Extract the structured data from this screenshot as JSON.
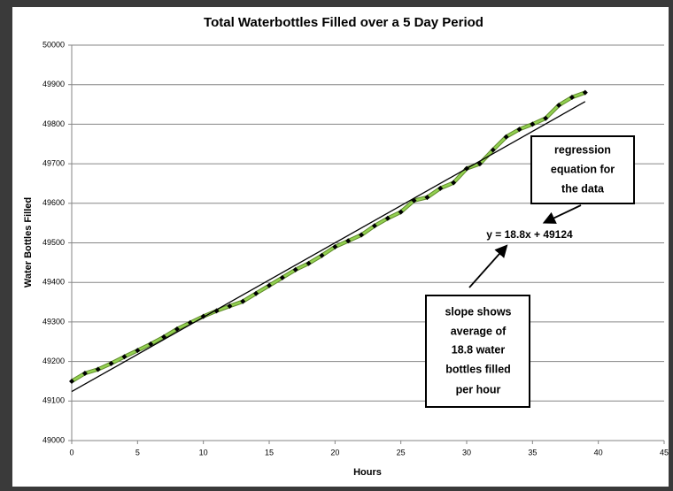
{
  "chart_data": {
    "type": "line",
    "title": "Total Waterbottles Filled over a 5 Day Period",
    "x_label": "Hours",
    "y_label": "Water Bottles Filled",
    "x": [
      0,
      1,
      2,
      3,
      4,
      5,
      6,
      7,
      8,
      9,
      10,
      11,
      12,
      13,
      14,
      15,
      16,
      17,
      18,
      19,
      20,
      21,
      22,
      23,
      24,
      25,
      26,
      27,
      28,
      29,
      30,
      31,
      32,
      33,
      34,
      35,
      36,
      37,
      38,
      39
    ],
    "series": [
      {
        "name": "Water Bottles Filled",
        "color": "#92d050",
        "marker_color": "#000000",
        "values": [
          49150,
          49170,
          49180,
          49195,
          49212,
          49228,
          49244,
          49262,
          49282,
          49298,
          49314,
          49328,
          49340,
          49352,
          49372,
          49392,
          49412,
          49432,
          49448,
          49468,
          49490,
          49505,
          49520,
          49543,
          49562,
          49578,
          49607,
          49615,
          49638,
          49652,
          49688,
          49700,
          49735,
          49768,
          49787,
          49800,
          49815,
          49848,
          49868,
          49880
        ]
      }
    ],
    "trendline": {
      "slope": 18.8,
      "intercept": 49124,
      "color": "#000000",
      "label": "y = 18.8x + 49124"
    },
    "annotations": [
      {
        "lines": [
          "regression",
          "equation for",
          "the data"
        ]
      },
      {
        "lines": [
          "slope shows",
          "average of",
          "18.8 water",
          "bottles filled",
          "per hour"
        ]
      }
    ],
    "xlim": [
      0,
      45
    ],
    "xticks": [
      0,
      5,
      10,
      15,
      20,
      25,
      30,
      35,
      40,
      45
    ],
    "ylim": [
      49000,
      50000
    ],
    "yticks": [
      49000,
      49100,
      49200,
      49300,
      49400,
      49500,
      49600,
      49700,
      49800,
      49900,
      50000
    ],
    "grid": true
  }
}
